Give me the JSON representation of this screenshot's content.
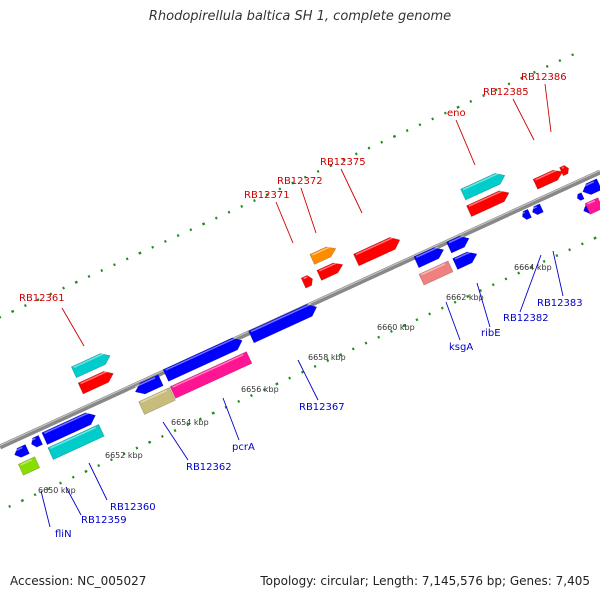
{
  "title": "Rhodopirellula baltica SH 1, complete genome",
  "footer": {
    "accession": "Accession: NC_005027",
    "summary": "Topology: circular; Length: 7,145,576 bp; Genes: 7,405"
  },
  "colors": {
    "backbone": "#888888",
    "tick": "#228B22",
    "top_label": "#cc0000",
    "bottom_label": "#0000cc",
    "leader": "#444444"
  },
  "scale": {
    "unit": "kbp",
    "tick_labels": [
      "6650 kbp",
      "6652 kbp",
      "6654 kbp",
      "6656 kbp",
      "6658 kbp",
      "6660 kbp",
      "6662 kbp",
      "6664 kbp"
    ]
  },
  "features": [
    {
      "kind": "arrow",
      "color": "#ff0000",
      "strand": "+"
    },
    {
      "kind": "arrow",
      "color": "#00cccc",
      "strand": "+"
    },
    {
      "kind": "arrow",
      "color": "#ff8c00",
      "strand": "+"
    },
    {
      "kind": "arrow",
      "color": "#ff0000",
      "strand": "+"
    },
    {
      "kind": "arrow",
      "color": "#ff0000",
      "strand": "+"
    },
    {
      "kind": "arrow",
      "color": "#ff0000",
      "strand": "+"
    },
    {
      "kind": "arrow",
      "color": "#00cccc",
      "strand": "+"
    },
    {
      "kind": "arrow",
      "color": "#ff0000",
      "strand": "+"
    },
    {
      "kind": "arrow",
      "color": "#ff0000",
      "strand": "+"
    },
    {
      "kind": "arrow",
      "color": "#ff0000",
      "strand": "+"
    },
    {
      "kind": "arrow",
      "color": "#0000ff",
      "strand": "-"
    },
    {
      "kind": "arrow",
      "color": "#0000ff",
      "strand": "-"
    },
    {
      "kind": "arrow",
      "color": "#0000ff",
      "strand": "+"
    },
    {
      "kind": "arrow",
      "color": "#0000ff",
      "strand": "-"
    },
    {
      "kind": "arrow",
      "color": "#0000ff",
      "strand": "+"
    },
    {
      "kind": "arrow",
      "color": "#0000ff",
      "strand": "+"
    },
    {
      "kind": "arrow",
      "color": "#0000ff",
      "strand": "+"
    },
    {
      "kind": "arrow",
      "color": "#0000ff",
      "strand": "+"
    },
    {
      "kind": "arrow",
      "color": "#0000ff",
      "strand": "+"
    },
    {
      "kind": "arrow",
      "color": "#0000ff",
      "strand": "-"
    },
    {
      "kind": "arrow",
      "color": "#0000ff",
      "strand": "-"
    },
    {
      "kind": "arrow",
      "color": "#0000ff",
      "strand": "-"
    },
    {
      "kind": "arrow",
      "color": "#0000ff",
      "strand": "-"
    },
    {
      "kind": "arrow",
      "color": "#0000ff",
      "strand": "-"
    },
    {
      "kind": "box",
      "color": "#88dd00"
    },
    {
      "kind": "box",
      "color": "#00cccc"
    },
    {
      "kind": "box",
      "color": "#c8bc7a"
    },
    {
      "kind": "box",
      "color": "#ff1493"
    },
    {
      "kind": "box",
      "color": "#f08080"
    },
    {
      "kind": "box",
      "color": "#ff1493"
    }
  ],
  "labels": [
    {
      "text": "RB12361",
      "strand": "top"
    },
    {
      "text": "RB12371",
      "strand": "top"
    },
    {
      "text": "RB12372",
      "strand": "top"
    },
    {
      "text": "RB12375",
      "strand": "top"
    },
    {
      "text": "eno",
      "strand": "top"
    },
    {
      "text": "RB12385",
      "strand": "top"
    },
    {
      "text": "RB12386",
      "strand": "top"
    },
    {
      "text": "fliN",
      "strand": "bottom"
    },
    {
      "text": "RB12359",
      "strand": "bottom"
    },
    {
      "text": "RB12360",
      "strand": "bottom"
    },
    {
      "text": "RB12362",
      "strand": "bottom"
    },
    {
      "text": "pcrA",
      "strand": "bottom"
    },
    {
      "text": "RB12367",
      "strand": "bottom"
    },
    {
      "text": "ksgA",
      "strand": "bottom"
    },
    {
      "text": "ribE",
      "strand": "bottom"
    },
    {
      "text": "RB12382",
      "strand": "bottom"
    },
    {
      "text": "RB12383",
      "strand": "bottom"
    }
  ]
}
